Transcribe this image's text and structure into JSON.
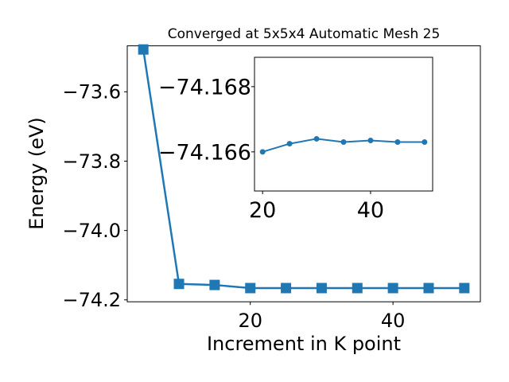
{
  "chart_data": [
    {
      "type": "line",
      "title": "Converged at 5x5x4 Automatic Mesh 25",
      "xlabel": "Increment in K point",
      "ylabel": "Energy (eV)",
      "xlim": [
        2.75,
        52.25
      ],
      "ylim": [
        -74.2055,
        -73.4675
      ],
      "xticks": [
        20,
        40
      ],
      "yticks": [
        -73.6,
        -73.8,
        -74.0,
        -74.2
      ],
      "xtick_labels": [
        "20",
        "40"
      ],
      "ytick_labels": [
        "−73.6",
        "−73.8",
        "−74.0",
        "−74.2"
      ],
      "series": [
        {
          "color": "#1f77b4",
          "marker": "square",
          "x": [
            5,
            10,
            15,
            20,
            25,
            30,
            35,
            40,
            45,
            50
          ],
          "y": [
            -73.478,
            -74.154,
            -74.157,
            -74.166,
            -74.166,
            -74.166,
            -74.166,
            -74.166,
            -74.166,
            -74.166
          ]
        }
      ],
      "grid": false
    },
    {
      "type": "line",
      "title": "",
      "xlabel": "",
      "ylabel": "",
      "placement": "inset upper-right",
      "xlim": [
        18.5,
        51.5
      ],
      "ylim": [
        -74.1648,
        -74.1689
      ],
      "xticks": [
        20,
        40
      ],
      "yticks": [
        -74.168,
        -74.166
      ],
      "xtick_labels": [
        "20",
        "40"
      ],
      "ytick_labels": [
        "−74.168",
        "−74.166"
      ],
      "series": [
        {
          "color": "#1f77b4",
          "marker": "circle",
          "x": [
            20,
            25,
            30,
            35,
            40,
            45,
            50
          ],
          "y": [
            -74.166,
            -74.16625,
            -74.1664,
            -74.1663,
            -74.16635,
            -74.1663,
            -74.1663
          ]
        }
      ],
      "grid": false
    }
  ]
}
